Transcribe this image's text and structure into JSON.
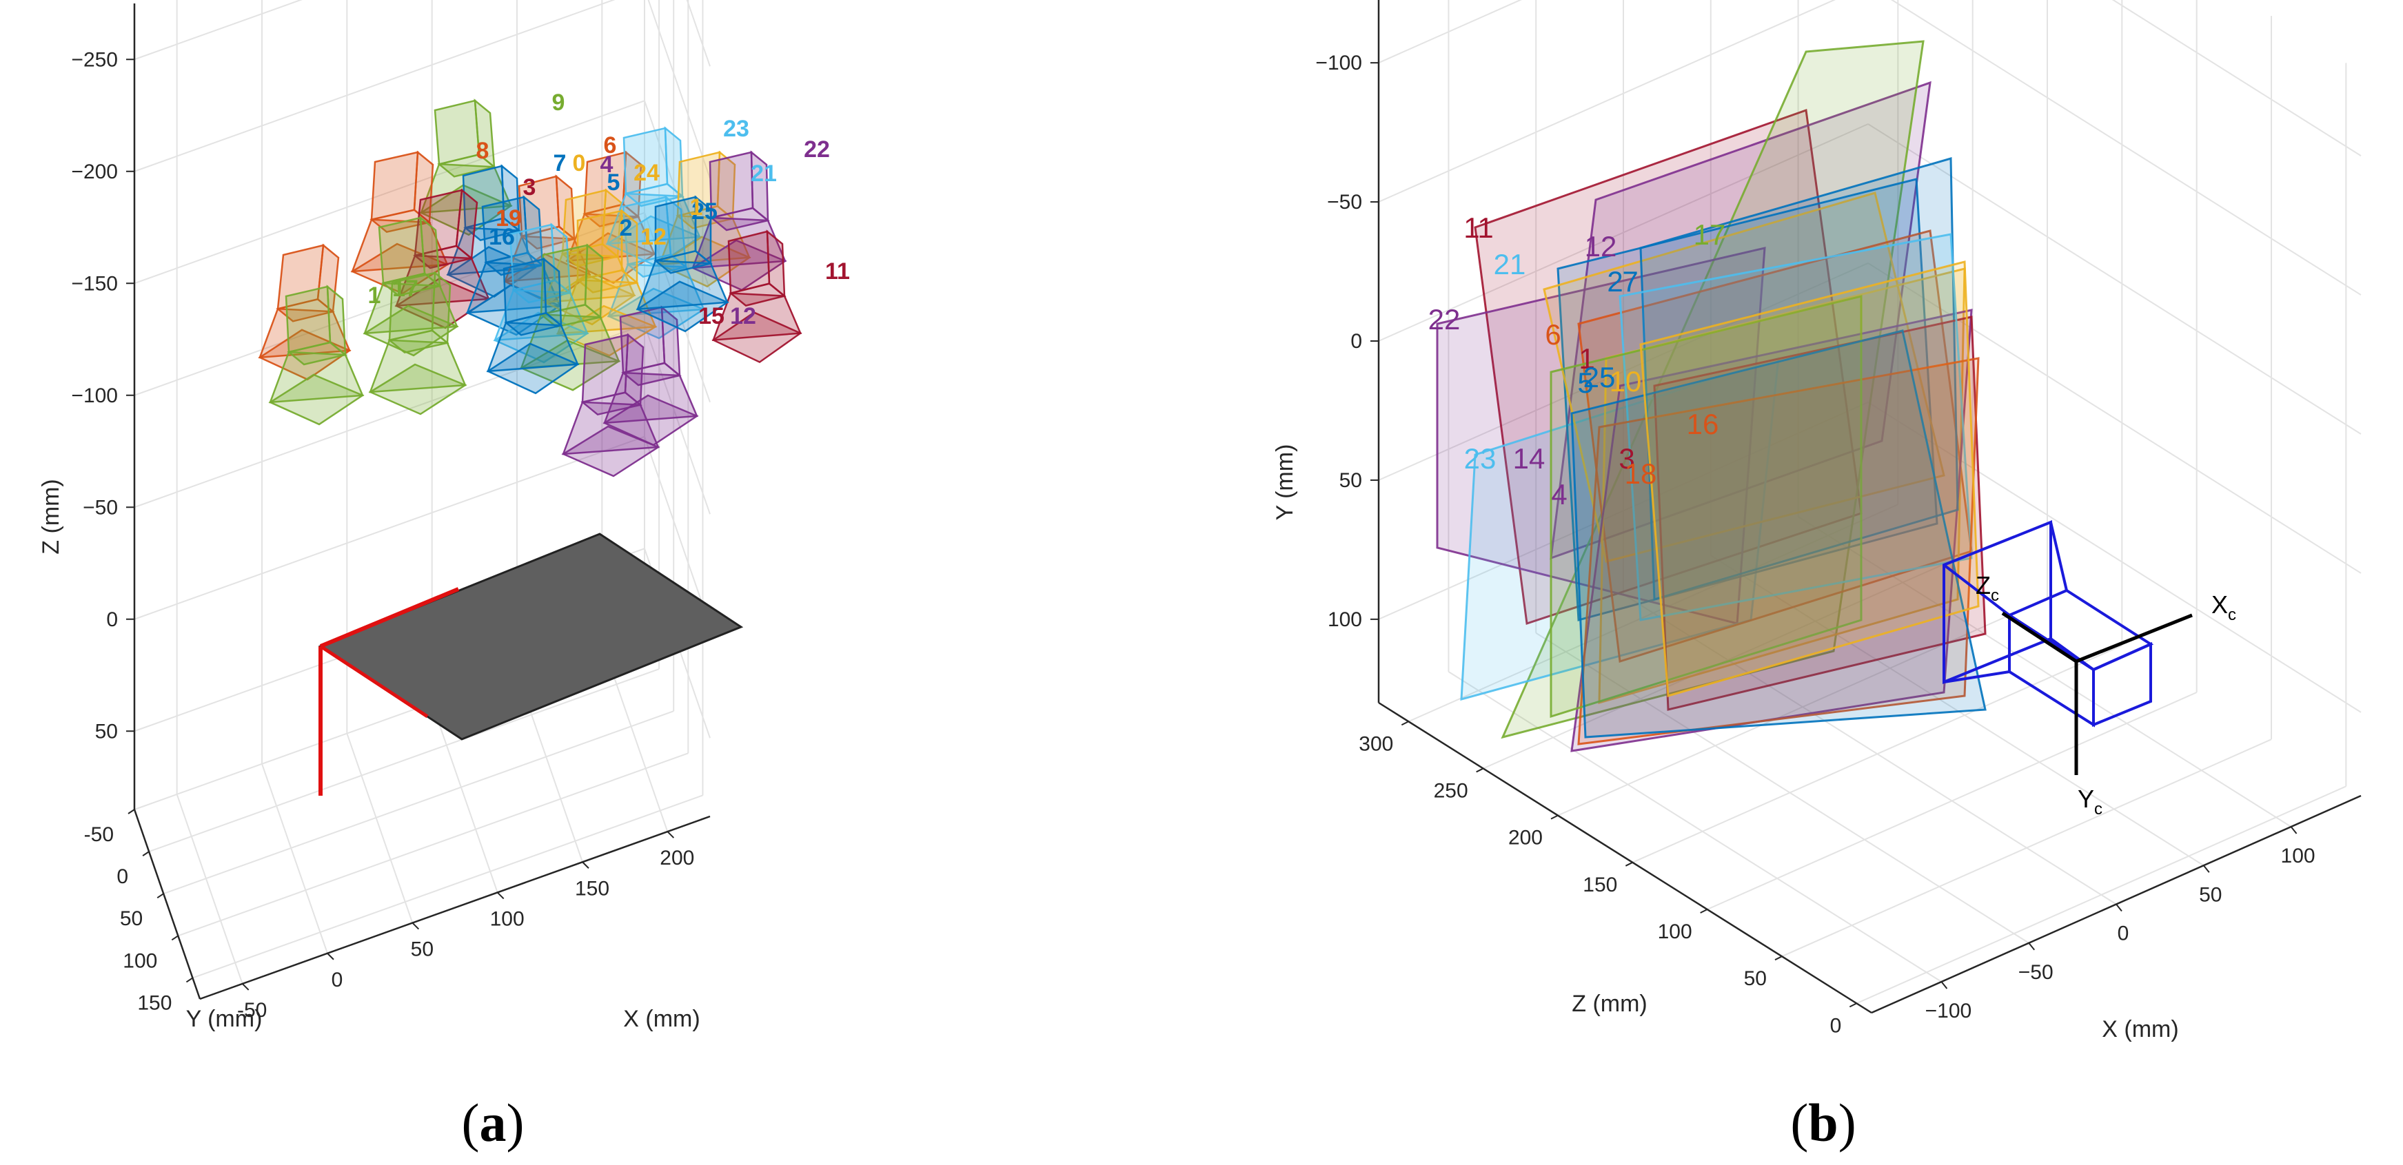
{
  "chart_data": [
    {
      "type": "scatter",
      "panel": "a",
      "title": "",
      "xlabel": "X (mm)",
      "ylabel": "Y (mm)",
      "zlabel": "Z (mm)",
      "x_ticks": [
        -50,
        0,
        50,
        100,
        150,
        200
      ],
      "y_ticks": [
        -50,
        0,
        50,
        100,
        150
      ],
      "z_ticks": [
        -250,
        -200,
        -150,
        -100,
        -50,
        0,
        50
      ],
      "xlim": [
        -75,
        225
      ],
      "ylim": [
        -50,
        175
      ],
      "zlim": [
        -275,
        85
      ],
      "z_reversed": true,
      "grid": true,
      "legend": "none",
      "board_label": "",
      "camera_labels": [
        {
          "text": "9",
          "color": "#77ac30"
        },
        {
          "text": "8",
          "color": "#d95319"
        },
        {
          "text": "7",
          "color": "#0072bd"
        },
        {
          "text": "0",
          "color": "#edb120"
        },
        {
          "text": "6",
          "color": "#d95319"
        },
        {
          "text": "4",
          "color": "#7e2f8e"
        },
        {
          "text": "5",
          "color": "#0072bd"
        },
        {
          "text": "3",
          "color": "#a2142f"
        },
        {
          "text": "24",
          "color": "#edb120"
        },
        {
          "text": "23",
          "color": "#4dbeee"
        },
        {
          "text": "21",
          "color": "#4dbeee"
        },
        {
          "text": "22",
          "color": "#7e2f8e"
        },
        {
          "text": "25",
          "color": "#0072bd"
        },
        {
          "text": "1",
          "color": "#edb120"
        },
        {
          "text": "2",
          "color": "#0072bd"
        },
        {
          "text": "12",
          "color": "#edb120"
        },
        {
          "text": "11",
          "color": "#a2142f"
        },
        {
          "text": "15",
          "color": "#a2142f"
        },
        {
          "text": "12",
          "color": "#7e2f8e"
        },
        {
          "text": "17",
          "color": "#77ac30"
        },
        {
          "text": "1",
          "color": "#77ac30"
        },
        {
          "text": "16",
          "color": "#0072bd"
        },
        {
          "text": "19",
          "color": "#d95319"
        }
      ]
    },
    {
      "type": "scatter",
      "panel": "b",
      "title": "",
      "xlabel": "X (mm)",
      "ylabel": "Y (mm)",
      "zlabel": "Z (mm)",
      "x_ticks": [
        -100,
        -50,
        0,
        50,
        100
      ],
      "y_ticks": [
        -100,
        -50,
        0,
        50,
        100
      ],
      "z_ticks": [
        0,
        50,
        100,
        150,
        200,
        250,
        300
      ],
      "xlim": [
        -140,
        140
      ],
      "ylim": [
        -130,
        130
      ],
      "zlim": [
        -10,
        320
      ],
      "y_reversed": true,
      "grid": true,
      "legend": "none",
      "camera_axes": {
        "x": {
          "main": "X",
          "sub": "c"
        },
        "y": {
          "main": "Y",
          "sub": "c"
        },
        "z": {
          "main": "Z",
          "sub": "c"
        }
      },
      "board_labels": [
        {
          "text": "11",
          "color": "#a2142f"
        },
        {
          "text": "12",
          "color": "#7e2f8e"
        },
        {
          "text": "17",
          "color": "#77ac30"
        },
        {
          "text": "21",
          "color": "#4dbeee"
        },
        {
          "text": "2",
          "color": "#0072bd"
        },
        {
          "text": "7",
          "color": "#0072bd"
        },
        {
          "text": "22",
          "color": "#7e2f8e"
        },
        {
          "text": "6",
          "color": "#d95319"
        },
        {
          "text": "1",
          "color": "#a2142f"
        },
        {
          "text": "5",
          "color": "#0072bd"
        },
        {
          "text": "25",
          "color": "#0072bd"
        },
        {
          "text": "10",
          "color": "#edb120"
        },
        {
          "text": "23",
          "color": "#4dbeee"
        },
        {
          "text": "14",
          "color": "#7e2f8e"
        },
        {
          "text": "4",
          "color": "#7e2f8e"
        },
        {
          "text": "3",
          "color": "#a2142f"
        },
        {
          "text": "18",
          "color": "#d95319"
        },
        {
          "text": "16",
          "color": "#d95319"
        }
      ]
    }
  ],
  "captions": [
    {
      "open": "(",
      "letter": "a",
      "close": ")"
    },
    {
      "open": "(",
      "letter": "b",
      "close": ")"
    }
  ]
}
